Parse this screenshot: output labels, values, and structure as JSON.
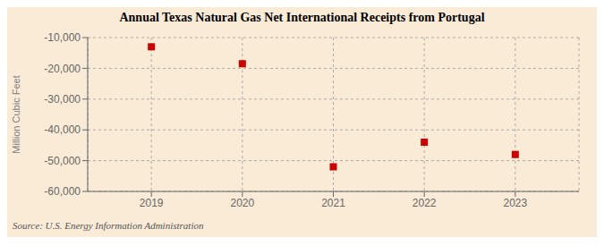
{
  "chart_data": {
    "type": "scatter",
    "title": "Annual Texas Natural Gas Net International Receipts from Portugal",
    "ylabel": "Million Cubic Feet",
    "annotations": [
      "Source: U.S. Energy Information Administration"
    ],
    "x": [
      2019,
      2020,
      2021,
      2022,
      2023
    ],
    "values": [
      -13000,
      -18500,
      -52000,
      -44000,
      -48000
    ],
    "color": "#cc0000",
    "marker": "square",
    "xlim": [
      2018.3,
      2023.7
    ],
    "ylim": [
      -60000,
      -10000
    ],
    "xticks": [
      2019,
      2020,
      2021,
      2022,
      2023
    ],
    "yticks": [
      {
        "value": -60000,
        "label": "-60,000"
      },
      {
        "value": -50000,
        "label": "-50,000"
      },
      {
        "value": -40000,
        "label": "-40,000"
      },
      {
        "value": -30000,
        "label": "-30,000"
      },
      {
        "value": -20000,
        "label": "-20,000"
      },
      {
        "value": -10000,
        "label": "-10,000"
      }
    ],
    "grid": true
  }
}
